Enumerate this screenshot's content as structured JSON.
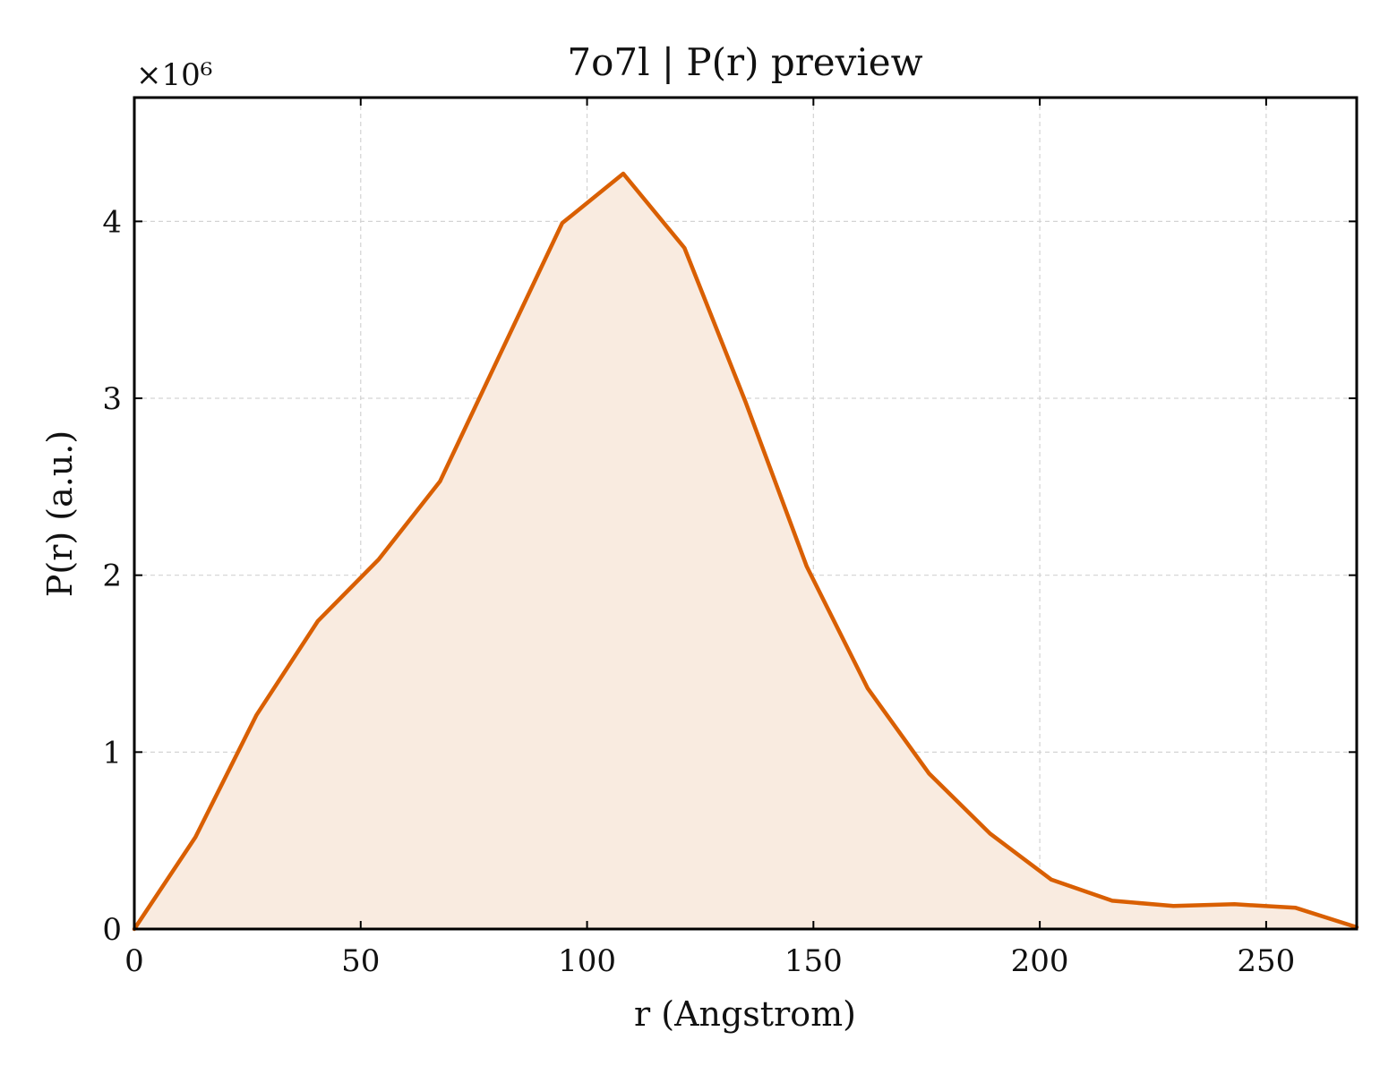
{
  "chart_data": {
    "type": "area",
    "title": "7o7l | P(r) preview",
    "xlabel": "r (Angstrom)",
    "ylabel": "P(r) (a.u.)",
    "y_multiplier_label": "×10⁶",
    "xlim": [
      0,
      270
    ],
    "ylim": [
      0,
      4.7
    ],
    "x_ticks": [
      0,
      50,
      100,
      150,
      200,
      250
    ],
    "y_ticks": [
      0,
      1,
      2,
      3,
      4
    ],
    "grid": true,
    "line_color": "#d95f02",
    "fill_color": "#f9ebe0",
    "series": [
      {
        "x": [
          0,
          13.5,
          27,
          40.5,
          54,
          67.5,
          81,
          94.5,
          108,
          121.5,
          135,
          148.5,
          162,
          175.5,
          189,
          202.5,
          216,
          229.5,
          243,
          256.5,
          270
        ],
        "y": [
          0.0,
          0.52,
          1.21,
          1.74,
          2.09,
          2.53,
          3.26,
          3.99,
          4.27,
          3.85,
          2.98,
          2.05,
          1.36,
          0.88,
          0.54,
          0.28,
          0.16,
          0.13,
          0.14,
          0.12,
          0.01
        ]
      }
    ]
  }
}
